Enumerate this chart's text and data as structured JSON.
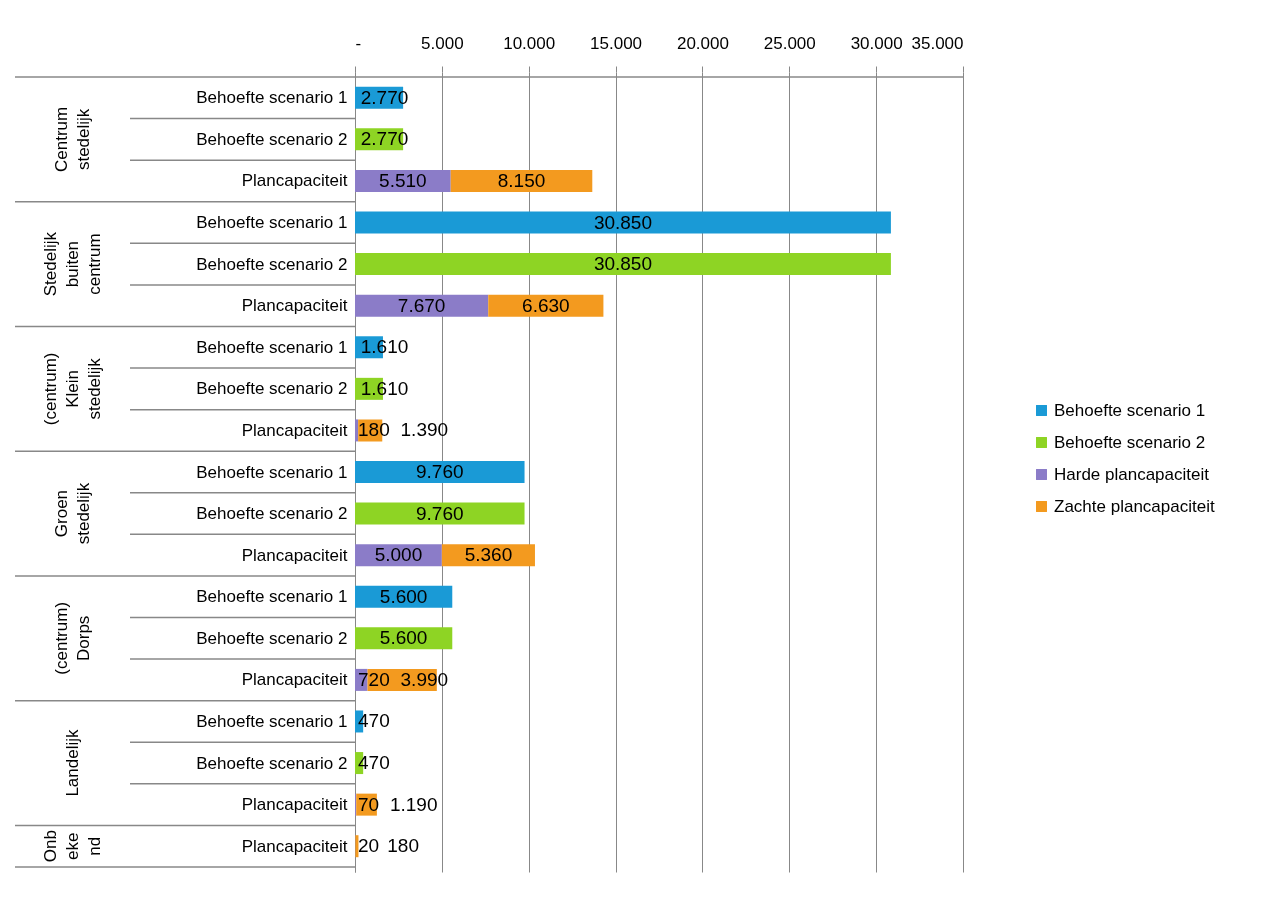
{
  "chart_data": {
    "type": "bar",
    "orientation": "horizontal",
    "stacked": true,
    "categories": [
      "Behoefte scenario 1",
      "Behoefte scenario 2",
      "Plancapaciteit",
      "Behoefte scenario 1",
      "Behoefte scenario 2",
      "Plancapaciteit",
      "Behoefte scenario 1",
      "Behoefte scenario 2",
      "Plancapaciteit",
      "Behoefte scenario 1",
      "Behoefte scenario 2",
      "Plancapaciteit",
      "Behoefte scenario 1",
      "Behoefte scenario 2",
      "Plancapaciteit",
      "Behoefte scenario 1",
      "Behoefte scenario 2",
      "Plancapaciteit",
      "Plancapaciteit"
    ],
    "series": [
      {
        "name": "Behoefte scenario 1",
        "color": "#1a9ad6",
        "values": [
          2770,
          null,
          null,
          30850,
          null,
          null,
          1610,
          null,
          null,
          9760,
          null,
          null,
          5600,
          null,
          null,
          470,
          null,
          null,
          null
        ],
        "value_labels": [
          "2.770",
          null,
          null,
          "30.850",
          null,
          null,
          "1.610",
          null,
          null,
          "9.760",
          null,
          null,
          "5.600",
          null,
          null,
          "470",
          null,
          null,
          null
        ]
      },
      {
        "name": "Behoefte scenario 2",
        "color": "#8ed424",
        "values": [
          null,
          2770,
          null,
          null,
          30850,
          null,
          null,
          1610,
          null,
          null,
          9760,
          null,
          null,
          5600,
          null,
          null,
          470,
          null,
          null
        ],
        "value_labels": [
          null,
          "2.770",
          null,
          null,
          "30.850",
          null,
          null,
          "1.610",
          null,
          null,
          "9.760",
          null,
          null,
          "5.600",
          null,
          null,
          "470",
          null,
          null
        ]
      },
      {
        "name": "Harde plancapaciteit",
        "color": "#8b7cc8",
        "values": [
          null,
          null,
          5510,
          null,
          null,
          7670,
          null,
          null,
          180,
          null,
          null,
          5000,
          null,
          null,
          720,
          null,
          null,
          70,
          20
        ],
        "value_labels": [
          null,
          null,
          "5.510",
          null,
          null,
          "7.670",
          null,
          null,
          "180",
          null,
          null,
          "5.000",
          null,
          null,
          "720",
          null,
          null,
          "70",
          "20"
        ]
      },
      {
        "name": "Zachte plancapaciteit",
        "color": "#f39a1f",
        "values": [
          null,
          null,
          8150,
          null,
          null,
          6630,
          null,
          null,
          1390,
          null,
          null,
          5360,
          null,
          null,
          3990,
          null,
          null,
          1190,
          180
        ],
        "value_labels": [
          null,
          null,
          "8.150",
          null,
          null,
          "6.630",
          null,
          null,
          "1.390",
          null,
          null,
          "5.360",
          null,
          null,
          "3.990",
          null,
          null,
          "1.190",
          "180"
        ]
      }
    ],
    "annotations": [
      "Centrum stedelijk",
      "Stedelijk buiten centrum",
      "(centrum) Klein stedelijk",
      "Groen stedelijk",
      "(centrum) Dorps",
      "Landelijk",
      "Onbekend"
    ],
    "xlim": [
      0,
      35000
    ],
    "xticks": [
      {
        "value": 0,
        "label": "-"
      },
      {
        "value": 5000,
        "label": "5.000"
      },
      {
        "value": 10000,
        "label": "10.000"
      },
      {
        "value": 15000,
        "label": "15.000"
      },
      {
        "value": 20000,
        "label": "20.000"
      },
      {
        "value": 25000,
        "label": "25.000"
      },
      {
        "value": 30000,
        "label": "30.000"
      },
      {
        "value": 35000,
        "label": "35.000"
      }
    ],
    "grid": "x",
    "legend": "right"
  }
}
